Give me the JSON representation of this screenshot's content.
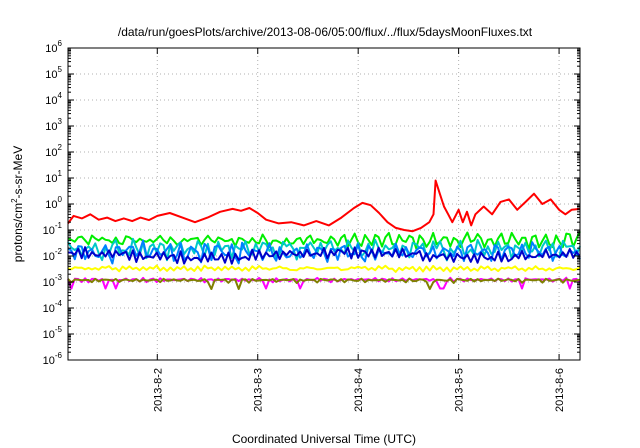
{
  "chart_data": {
    "type": "line",
    "title": "/data/run/goesPlots/archive/2013-08-06/05:00/flux/../flux/5daysMoonFluxes.txt",
    "xlabel": "Coordinated Universal Time (UTC)",
    "ylabel": {
      "prefix": "protons/cm",
      "superscript": "2",
      "suffix": "-s-sr-MeV"
    },
    "x_scale": "date",
    "xlim": [
      "2013-08-01T02:40",
      "2013-08-06T05:00"
    ],
    "x_ticks": [
      {
        "date": "2013-08-02",
        "label": "2013-8-2"
      },
      {
        "date": "2013-08-03",
        "label": "2013-8-3"
      },
      {
        "date": "2013-08-04",
        "label": "2013-8-4"
      },
      {
        "date": "2013-08-05",
        "label": "2013-8-5"
      },
      {
        "date": "2013-08-06",
        "label": "2013-8-6"
      }
    ],
    "y_scale": "log",
    "ylim": [
      1e-06,
      1000000.0
    ],
    "y_ticks": [
      {
        "value": 1e-06,
        "base": "10",
        "exp": "-6"
      },
      {
        "value": 1e-05,
        "base": "10",
        "exp": "-5"
      },
      {
        "value": 0.0001,
        "base": "10",
        "exp": "-4"
      },
      {
        "value": 0.001,
        "base": "10",
        "exp": "-3"
      },
      {
        "value": 0.01,
        "base": "10",
        "exp": "-2"
      },
      {
        "value": 0.1,
        "base": "10",
        "exp": "-1"
      },
      {
        "value": 1,
        "base": "10",
        "exp": "0"
      },
      {
        "value": 10,
        "base": "10",
        "exp": "1"
      },
      {
        "value": 100,
        "base": "10",
        "exp": "2"
      },
      {
        "value": 1000,
        "base": "10",
        "exp": "3"
      },
      {
        "value": 10000,
        "base": "10",
        "exp": "4"
      },
      {
        "value": 100000,
        "base": "10",
        "exp": "5"
      },
      {
        "value": 1000000,
        "base": "10",
        "exp": "6"
      }
    ],
    "grid": true,
    "legend": "none",
    "series": [
      {
        "color": "#ff0000",
        "points": [
          [
            "2013-08-01T02:40",
            0.18
          ],
          [
            "2013-08-01T04:00",
            0.35
          ],
          [
            "2013-08-01T06:00",
            0.28
          ],
          [
            "2013-08-01T08:00",
            0.4
          ],
          [
            "2013-08-01T10:00",
            0.25
          ],
          [
            "2013-08-01T12:00",
            0.3
          ],
          [
            "2013-08-01T14:00",
            0.22
          ],
          [
            "2013-08-01T16:00",
            0.28
          ],
          [
            "2013-08-01T18:00",
            0.22
          ],
          [
            "2013-08-01T20:00",
            0.3
          ],
          [
            "2013-08-01T22:00",
            0.24
          ],
          [
            "2013-08-02T00:00",
            0.35
          ],
          [
            "2013-08-02T03:00",
            0.45
          ],
          [
            "2013-08-02T06:00",
            0.3
          ],
          [
            "2013-08-02T09:00",
            0.2
          ],
          [
            "2013-08-02T12:00",
            0.3
          ],
          [
            "2013-08-02T15:00",
            0.5
          ],
          [
            "2013-08-02T18:00",
            0.65
          ],
          [
            "2013-08-02T20:00",
            0.55
          ],
          [
            "2013-08-02T22:00",
            0.7
          ],
          [
            "2013-08-03T00:00",
            0.45
          ],
          [
            "2013-08-03T02:00",
            0.25
          ],
          [
            "2013-08-03T05:00",
            0.18
          ],
          [
            "2013-08-03T08:00",
            0.2
          ],
          [
            "2013-08-03T11:00",
            0.15
          ],
          [
            "2013-08-03T14:00",
            0.22
          ],
          [
            "2013-08-03T17:00",
            0.15
          ],
          [
            "2013-08-03T20:00",
            0.3
          ],
          [
            "2013-08-03T23:00",
            0.7
          ],
          [
            "2013-08-04T01:00",
            1.1
          ],
          [
            "2013-08-04T03:00",
            0.9
          ],
          [
            "2013-08-04T05:00",
            0.45
          ],
          [
            "2013-08-04T07:00",
            0.2
          ],
          [
            "2013-08-04T09:00",
            0.12
          ],
          [
            "2013-08-04T11:00",
            0.1
          ],
          [
            "2013-08-04T13:00",
            0.09
          ],
          [
            "2013-08-04T15:00",
            0.12
          ],
          [
            "2013-08-04T17:00",
            0.2
          ],
          [
            "2013-08-04T18:00",
            0.4
          ],
          [
            "2013-08-04T18:30",
            8.0
          ],
          [
            "2013-08-04T19:30",
            2.5
          ],
          [
            "2013-08-04T20:30",
            0.8
          ],
          [
            "2013-08-04T21:30",
            0.4
          ],
          [
            "2013-08-04T22:30",
            0.2
          ],
          [
            "2013-08-05T00:00",
            0.6
          ],
          [
            "2013-08-05T01:00",
            0.2
          ],
          [
            "2013-08-05T02:00",
            0.5
          ],
          [
            "2013-08-05T03:00",
            0.15
          ],
          [
            "2013-08-05T04:00",
            0.4
          ],
          [
            "2013-08-05T06:00",
            0.8
          ],
          [
            "2013-08-05T08:00",
            0.4
          ],
          [
            "2013-08-05T10:00",
            1.2
          ],
          [
            "2013-08-05T12:00",
            1.5
          ],
          [
            "2013-08-05T14:00",
            0.6
          ],
          [
            "2013-08-05T16:00",
            1.2
          ],
          [
            "2013-08-05T18:00",
            2.5
          ],
          [
            "2013-08-05T20:00",
            1.0
          ],
          [
            "2013-08-05T22:00",
            1.5
          ],
          [
            "2013-08-06T00:00",
            0.6
          ],
          [
            "2013-08-06T01:30",
            0.4
          ],
          [
            "2013-08-06T03:00",
            0.6
          ],
          [
            "2013-08-06T05:00",
            0.65
          ]
        ]
      },
      {
        "color": "#00ee00",
        "mean": 0.04,
        "amp_high": 2.2,
        "amp_low": 0.45,
        "freq": 1.9,
        "phase": 0.1
      },
      {
        "color": "#00c8c8",
        "mean": 0.02,
        "amp_high": 2.0,
        "amp_low": 0.4,
        "freq": 2.3,
        "phase": 1.3
      },
      {
        "color": "#0080ff",
        "mean": 0.015,
        "amp_high": 2.0,
        "amp_low": 0.42,
        "freq": 1.7,
        "phase": 2.1
      },
      {
        "color": "#0000c8",
        "mean": 0.011,
        "amp_high": 1.7,
        "amp_low": 0.55,
        "freq": 2.7,
        "phase": 0.7
      },
      {
        "color": "#ffff00",
        "mean": 0.0033,
        "amp_high": 1.25,
        "amp_low": 0.8,
        "freq": 3.1,
        "phase": 2.9
      },
      {
        "color": "#ff00ff",
        "mean": 0.00125,
        "amp_high": 1.12,
        "amp_low": 0.8,
        "freq": 3.7,
        "phase": 1.9
      },
      {
        "color": "#808000",
        "mean": 0.0012,
        "amp_high": 1.1,
        "amp_low": 0.82,
        "freq": 4.1,
        "phase": 0.4
      }
    ]
  }
}
